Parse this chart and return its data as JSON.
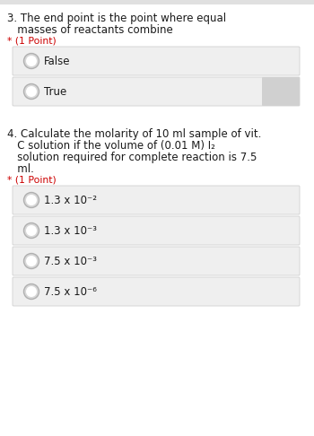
{
  "bg_color": "#ffffff",
  "q3_text_line1": "3. The end point is the point where equal",
  "q3_text_line2": "   masses of reactants combine",
  "q3_points": "* (1 Point)",
  "q3_options": [
    "False",
    "True"
  ],
  "q4_text_line1": "4. Calculate the molarity of 10 ml sample of vit.",
  "q4_text_line2": "   C solution if the volume of (0.01 M) I₂",
  "q4_text_line3": "   solution required for complete reaction is 7.5",
  "q4_text_line4": "   ml.",
  "q4_points": "* (1 Point)",
  "q4_options": [
    "1.3 x 10⁻²",
    "1.3 x 10⁻³",
    "7.5 x 10⁻³",
    "7.5 x 10⁻⁶"
  ],
  "option_box_color": "#efefef",
  "option_box_border": "#d0d0d0",
  "circle_edge_color": "#b0b0b0",
  "circle_fill_color": "#d8d8d8",
  "text_color": "#1a1a1a",
  "points_color": "#cc0000",
  "font_size_question": 8.5,
  "font_size_option": 8.5,
  "font_size_points": 7.8,
  "true_shadow_color": "#d0d0d0",
  "top_bar_color": "#e0e0e0"
}
